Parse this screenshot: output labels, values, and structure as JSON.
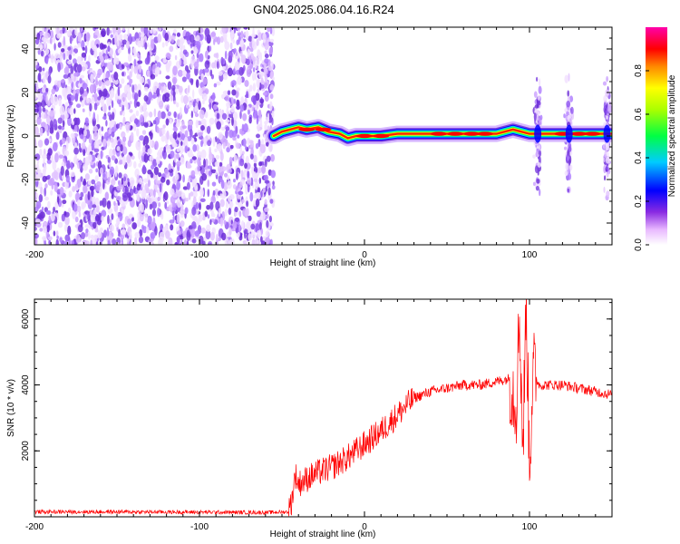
{
  "title": "GN04.2025.086.04.16.R24",
  "chart_data": [
    {
      "type": "heatmap",
      "xlabel": "Height of straight line (km)",
      "ylabel": "Frequency (Hz)",
      "xlim": [
        -200,
        150
      ],
      "ylim": [
        -50,
        50
      ],
      "x_ticks": [
        "-200",
        "-100",
        "0",
        "100"
      ],
      "y_ticks": [
        "-40",
        "-20",
        "0",
        "20",
        "40"
      ],
      "colorbar": {
        "label": "Normalized spectral amplitude",
        "range": [
          0.0,
          1.0
        ],
        "ticks": [
          "0.0",
          "0.2",
          "0.4",
          "0.6",
          "0.8"
        ]
      },
      "features": {
        "noise_x_range": [
          -200,
          -55
        ],
        "signal_track": [
          {
            "x": -55,
            "y": 0
          },
          {
            "x": -50,
            "y": 2
          },
          {
            "x": -45,
            "y": 3
          },
          {
            "x": -40,
            "y": 4
          },
          {
            "x": -35,
            "y": 3
          },
          {
            "x": -28,
            "y": 4
          },
          {
            "x": -22,
            "y": 2
          },
          {
            "x": -15,
            "y": 1
          },
          {
            "x": -10,
            "y": -1
          },
          {
            "x": -5,
            "y": 0
          },
          {
            "x": 0,
            "y": 0
          },
          {
            "x": 10,
            "y": 0
          },
          {
            "x": 20,
            "y": 1
          },
          {
            "x": 40,
            "y": 1
          },
          {
            "x": 60,
            "y": 1
          },
          {
            "x": 80,
            "y": 1
          },
          {
            "x": 90,
            "y": 3
          },
          {
            "x": 100,
            "y": 1
          },
          {
            "x": 120,
            "y": 1
          },
          {
            "x": 150,
            "y": 1
          }
        ],
        "vertical_streaks_x": [
          105,
          124,
          147
        ]
      }
    },
    {
      "type": "line",
      "xlabel": "Height of straight line (km)",
      "ylabel": "SNR (10 * v/v)",
      "xlim": [
        -200,
        150
      ],
      "ylim": [
        0,
        6600
      ],
      "x_ticks": [
        "-200",
        "-100",
        "0",
        "100"
      ],
      "y_ticks": [
        "2000",
        "4000",
        "6000"
      ],
      "series": [
        {
          "color": "#ff0000",
          "points": [
            [
              -200,
              150
            ],
            [
              -150,
              150
            ],
            [
              -100,
              140
            ],
            [
              -60,
              130
            ],
            [
              -46,
              150
            ],
            [
              -44,
              500
            ],
            [
              -42,
              1300
            ],
            [
              -40,
              1000
            ],
            [
              -30,
              1300
            ],
            [
              -20,
              1500
            ],
            [
              -10,
              1800
            ],
            [
              0,
              2200
            ],
            [
              10,
              2600
            ],
            [
              20,
              3100
            ],
            [
              30,
              3600
            ],
            [
              40,
              3800
            ],
            [
              50,
              3900
            ],
            [
              60,
              4000
            ],
            [
              70,
              4000
            ],
            [
              80,
              4100
            ],
            [
              88,
              4200
            ],
            [
              92,
              3500
            ],
            [
              94,
              6200
            ],
            [
              96,
              2000
            ],
            [
              98,
              6500
            ],
            [
              100,
              1600
            ],
            [
              102,
              4400
            ],
            [
              106,
              4000
            ],
            [
              120,
              4000
            ],
            [
              140,
              3800
            ],
            [
              150,
              3700
            ]
          ]
        }
      ]
    }
  ]
}
